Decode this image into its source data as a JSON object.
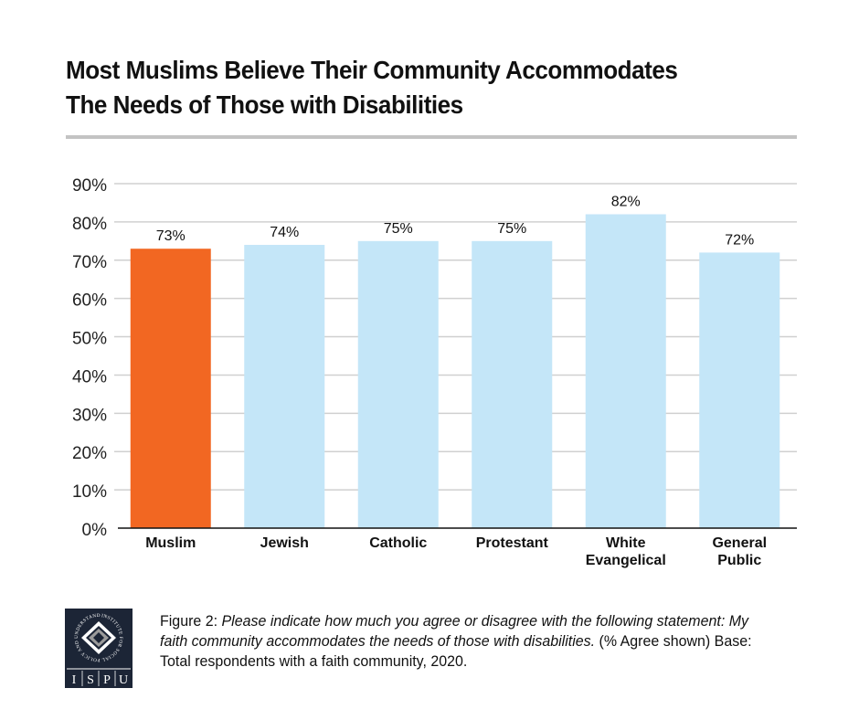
{
  "header": {
    "title_line1": "Most Muslims Believe Their Community Accommodates",
    "title_line2": "The Needs of Those with Disabilities"
  },
  "chart_data": {
    "type": "bar",
    "title": "Most Muslims Believe Their Community Accommodates The Needs of Those with Disabilities",
    "xlabel": "",
    "ylabel": "",
    "categories": [
      "Muslim",
      "Jewish",
      "Catholic",
      "Protestant",
      "White Evangelical",
      "General Public"
    ],
    "category_lines": [
      [
        "Muslim"
      ],
      [
        "Jewish"
      ],
      [
        "Catholic"
      ],
      [
        "Protestant"
      ],
      [
        "White",
        "Evangelical"
      ],
      [
        "General",
        "Public"
      ]
    ],
    "values": [
      73,
      74,
      75,
      75,
      82,
      72
    ],
    "data_labels": [
      "73%",
      "74%",
      "75%",
      "75%",
      "82%",
      "72%"
    ],
    "highlight_index": 0,
    "colors": {
      "highlight": "#f26722",
      "default": "#c4e6f8",
      "grid": "#d0d0d0",
      "axis": "#111111"
    },
    "ylim": [
      0,
      90
    ],
    "yticks": [
      0,
      10,
      20,
      30,
      40,
      50,
      60,
      70,
      80,
      90
    ],
    "ytick_labels": [
      "0%",
      "10%",
      "20%",
      "30%",
      "40%",
      "50%",
      "60%",
      "70%",
      "80%",
      "90%"
    ],
    "grid": true,
    "legend": "none"
  },
  "caption": {
    "figure_label": "Figure 2",
    "separator": ":",
    "question": " Please indicate how much you agree or disagree with the following statement: My faith community accommodates the needs of those with disabilities.",
    "note": " (% Agree shown) Base: Total respondents with a faith community, 2020."
  },
  "logo": {
    "ring_text": "INSTITUTE FOR SOCIAL POLICY AND UNDERSTANDING",
    "letters": [
      "I",
      "S",
      "P",
      "U"
    ]
  }
}
